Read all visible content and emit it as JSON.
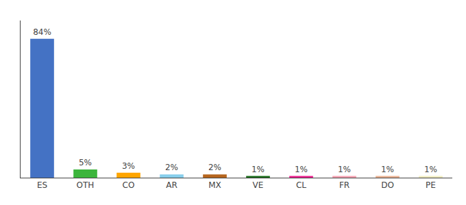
{
  "chart_data": {
    "type": "bar",
    "categories": [
      "ES",
      "OTH",
      "CO",
      "AR",
      "MX",
      "VE",
      "CL",
      "FR",
      "DO",
      "PE"
    ],
    "values": [
      84,
      5,
      3,
      2,
      2,
      1,
      1,
      1,
      1,
      1
    ],
    "value_labels": [
      "84%",
      "5%",
      "3%",
      "2%",
      "2%",
      "1%",
      "1%",
      "1%",
      "1%",
      "1%"
    ],
    "colors": [
      "#4472c4",
      "#3cb53c",
      "#ffa500",
      "#87ceeb",
      "#b5651d",
      "#1a6b1a",
      "#e91e8c",
      "#f4a0b0",
      "#e8b090",
      "#f0ecc0"
    ],
    "ylim": [
      0,
      95
    ],
    "data_labels": true,
    "tick_labels": "x",
    "grid": false
  }
}
